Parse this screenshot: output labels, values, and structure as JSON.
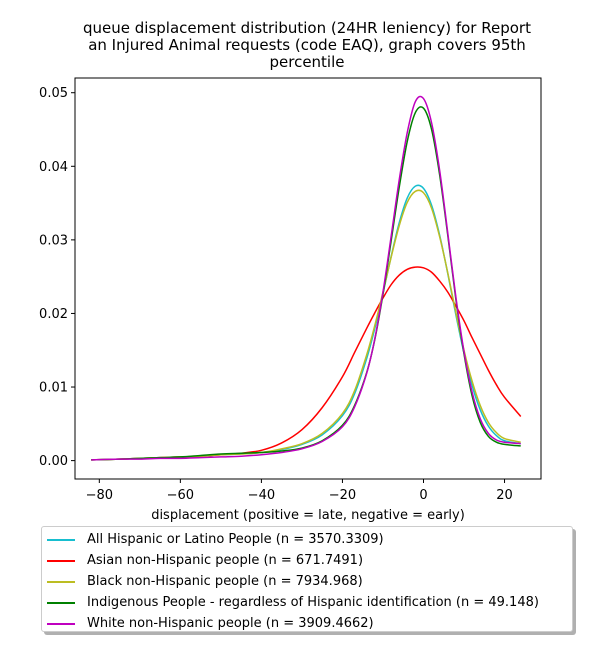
{
  "chart_data": {
    "type": "line",
    "title": "queue displacement distribution (24HR leniency) for Report\nan Injured Animal  requests (code EAQ), graph covers 95th\npercentile",
    "xlabel": "displacement (positive = late, negative = early)",
    "ylabel": "",
    "xlim": [
      -86,
      29
    ],
    "ylim": [
      -0.0025,
      0.052
    ],
    "xticks": [
      -80,
      -60,
      -40,
      -20,
      0,
      20
    ],
    "yticks": [
      0.0,
      0.01,
      0.02,
      0.03,
      0.04,
      0.05
    ],
    "xtick_labels": [
      "−80",
      "−60",
      "−40",
      "−20",
      "0",
      "20"
    ],
    "ytick_labels": [
      "0.00",
      "0.01",
      "0.02",
      "0.03",
      "0.04",
      "0.05"
    ],
    "grid": false,
    "legend_position": "below plot",
    "x": [
      -82,
      -75,
      -70,
      -65,
      -60,
      -55,
      -50,
      -45,
      -40,
      -35,
      -30,
      -25,
      -20,
      -17,
      -14,
      -12,
      -10,
      -8,
      -6,
      -4,
      -2,
      0,
      2,
      4,
      6,
      8,
      10,
      12,
      14,
      16,
      18,
      20,
      24
    ],
    "series": [
      {
        "name": "All Hispanic or Latino People (n = 3570.3309)",
        "color": "#17becf",
        "values": [
          0.0001,
          0.0002,
          0.0003,
          0.0004,
          0.0005,
          0.0006,
          0.0008,
          0.0009,
          0.0011,
          0.0015,
          0.0022,
          0.0035,
          0.0061,
          0.0091,
          0.0139,
          0.018,
          0.0227,
          0.0277,
          0.0323,
          0.0357,
          0.0373,
          0.037,
          0.0347,
          0.0306,
          0.0254,
          0.0198,
          0.0146,
          0.0102,
          0.0069,
          0.0047,
          0.0034,
          0.0027,
          0.0023
        ]
      },
      {
        "name": "Asian non-Hispanic people (n = 671.7491)",
        "color": "#ff0000",
        "values": [
          0.0001,
          0.0002,
          0.0003,
          0.0004,
          0.0005,
          0.0006,
          0.0008,
          0.001,
          0.0014,
          0.0024,
          0.0042,
          0.0072,
          0.0114,
          0.0147,
          0.018,
          0.0201,
          0.0221,
          0.0239,
          0.0252,
          0.026,
          0.0263,
          0.0262,
          0.0256,
          0.0244,
          0.0229,
          0.021,
          0.019,
          0.0167,
          0.0145,
          0.0123,
          0.0103,
          0.0086,
          0.006
        ]
      },
      {
        "name": "Black non-Hispanic people (n = 7934.968)",
        "color": "#bcbd22",
        "values": [
          0.0001,
          0.0002,
          0.0003,
          0.0004,
          0.0005,
          0.0006,
          0.0008,
          0.0009,
          0.0011,
          0.0016,
          0.0023,
          0.0037,
          0.0064,
          0.0095,
          0.0144,
          0.0184,
          0.0229,
          0.0276,
          0.0319,
          0.0351,
          0.0366,
          0.0364,
          0.0343,
          0.0304,
          0.0255,
          0.0201,
          0.015,
          0.0108,
          0.0075,
          0.0052,
          0.0038,
          0.003,
          0.0025
        ]
      },
      {
        "name": "Indigenous People - regardless of Hispanic identification (n = 49.148)",
        "color": "#008000",
        "values": [
          0.0001,
          0.0002,
          0.0003,
          0.0004,
          0.0005,
          0.0007,
          0.0009,
          0.001,
          0.0011,
          0.0013,
          0.0017,
          0.0027,
          0.0048,
          0.0075,
          0.012,
          0.0165,
          0.0226,
          0.0298,
          0.0371,
          0.0434,
          0.0473,
          0.0479,
          0.045,
          0.0388,
          0.0306,
          0.0219,
          0.0145,
          0.0088,
          0.0052,
          0.0033,
          0.0025,
          0.0022,
          0.002
        ]
      },
      {
        "name": "White non-Hispanic people (n = 3909.4662)",
        "color": "#bf00bf",
        "values": [
          0.0001,
          0.0002,
          0.0002,
          0.0003,
          0.0003,
          0.0004,
          0.0005,
          0.0006,
          0.0008,
          0.0011,
          0.0016,
          0.0026,
          0.0046,
          0.0073,
          0.0119,
          0.0166,
          0.0229,
          0.0304,
          0.0381,
          0.0446,
          0.0488,
          0.0492,
          0.0459,
          0.0394,
          0.0309,
          0.0222,
          0.0148,
          0.0093,
          0.0057,
          0.0037,
          0.0028,
          0.0025,
          0.0023
        ]
      }
    ]
  }
}
